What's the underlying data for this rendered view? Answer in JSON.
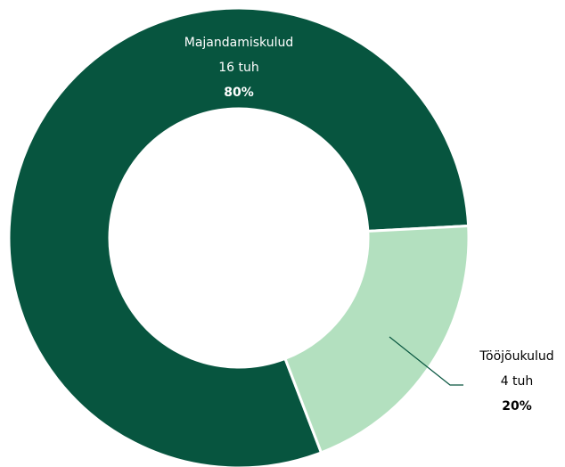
{
  "chart_data": {
    "type": "donut",
    "categories": [
      "Majandamiskulud",
      "Tööjõukulud"
    ],
    "values": [
      80,
      20
    ],
    "value_labels": [
      "80%",
      "20%"
    ],
    "amount_labels": [
      "16 tuh",
      "4 tuh"
    ],
    "colors": [
      "#07553f",
      "#b3e0bf"
    ]
  }
}
